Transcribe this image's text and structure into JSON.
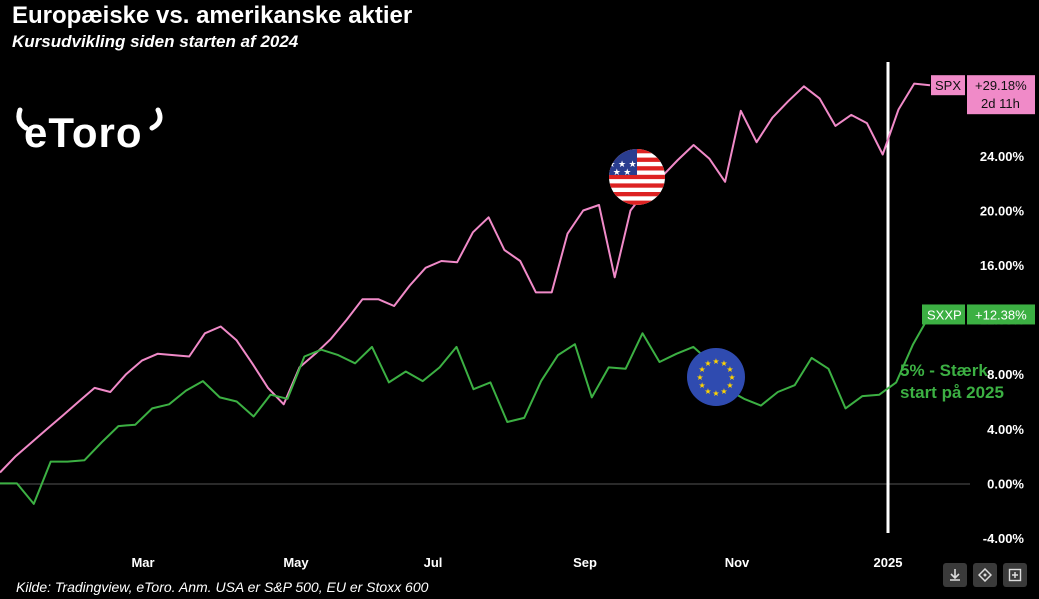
{
  "header": {
    "title": "Europæiske vs. amerikanske aktier",
    "subtitle": "Kursudvikling siden starten af 2024"
  },
  "logo": {
    "text": "eToro"
  },
  "annotation": {
    "line1": "5% - Stærk",
    "line2": "start på 2025"
  },
  "footer": {
    "source": "Kilde: Tradingview, eToro. Anm. USA er S&P 500, EU er Stoxx 600"
  },
  "toolbar": {
    "icons": [
      "download-icon",
      "share-icon",
      "expand-icon"
    ]
  },
  "colors": {
    "spx": "#f08ac8",
    "sxxp": "#3cb043",
    "background": "#000000"
  },
  "chart_data": {
    "type": "line",
    "title": "Europæiske vs. amerikanske aktier",
    "subtitle": "Kursudvikling siden starten af 2024",
    "x_ticks": [
      "Mar",
      "May",
      "Jul",
      "Sep",
      "Nov",
      "2025"
    ],
    "y_ticks": [
      "-4.00%",
      "0.00%",
      "4.00%",
      "8.00%",
      "12.00%",
      "16.00%",
      "20.00%",
      "24.00%"
    ],
    "ylim": [
      -4,
      30
    ],
    "grid": false,
    "series": [
      {
        "name": "SPX",
        "last_value_label": "+29.18%",
        "countdown": "2d 11h",
        "values": [
          0.8,
          2.0,
          3.0,
          4.0,
          5.0,
          6.0,
          7.0,
          6.7,
          8.0,
          9.0,
          9.5,
          9.4,
          9.3,
          11.0,
          11.5,
          10.5,
          8.8,
          7.0,
          5.8,
          8.5,
          9.5,
          10.6,
          12.0,
          13.5,
          13.5,
          13.0,
          14.5,
          15.8,
          16.3,
          16.2,
          18.4,
          19.5,
          17.1,
          16.3,
          14.0,
          14.0,
          18.3,
          20.0,
          20.4,
          15.1,
          20.0,
          21.5,
          22.5,
          23.7,
          24.8,
          23.8,
          22.1,
          27.3,
          25.0,
          26.8,
          28.0,
          29.1,
          28.2,
          26.2,
          27.0,
          26.4,
          24.1,
          27.4,
          29.3,
          29.18
        ],
        "dates_note": ""
      },
      {
        "name": "SXXP",
        "last_value_label": "+12.38%",
        "values": [
          0.0,
          0.0,
          -1.5,
          1.6,
          1.6,
          1.7,
          3.0,
          4.2,
          4.3,
          5.5,
          5.8,
          6.8,
          7.5,
          6.3,
          6.0,
          4.9,
          6.5,
          6.2,
          9.3,
          9.8,
          9.4,
          8.8,
          10.0,
          7.4,
          8.2,
          7.5,
          8.5,
          10.0,
          6.9,
          7.4,
          4.5,
          4.8,
          7.5,
          9.4,
          10.2,
          6.3,
          8.5,
          8.4,
          11.0,
          8.9,
          9.5,
          10.0,
          8.9,
          6.9,
          6.2,
          5.7,
          6.7,
          7.2,
          9.2,
          8.4,
          5.5,
          6.4,
          6.5,
          7.4,
          10.2,
          12.38
        ],
        "dates_note": ""
      }
    ],
    "annotations": [
      "5% - Stærk",
      "start på 2025"
    ]
  }
}
